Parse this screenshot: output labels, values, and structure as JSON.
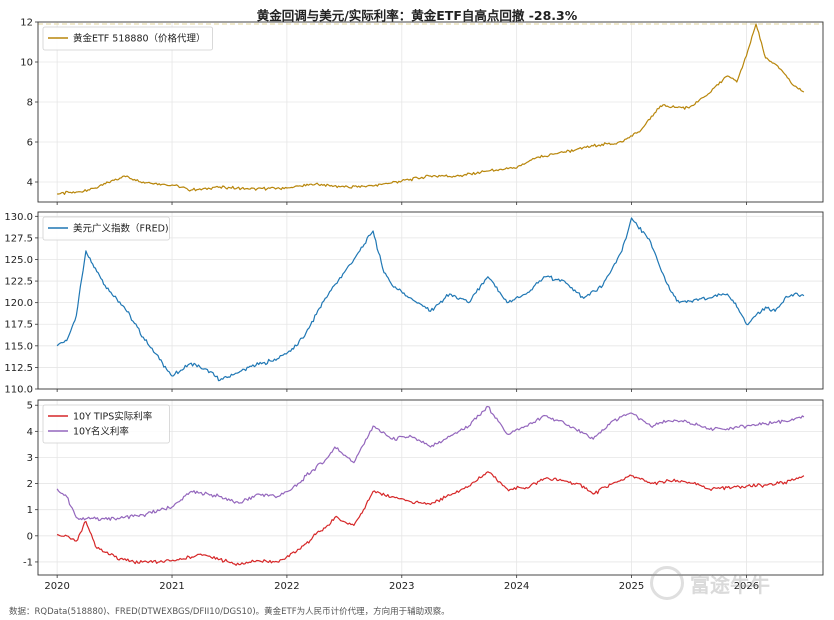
{
  "title": "黄金回调与美元/实际利率：黄金ETF自高点回撤 -28.3%",
  "footnote": "数据：RQData(518880)、FRED(DTWEXBGS/DFII10/DGS10)。黄金ETF为人民币计价代理，方向用于辅助观察。",
  "watermark": "富途牛牛",
  "colors": {
    "gold": "#b8860b",
    "usd": "#1f77b4",
    "tips": "#d62728",
    "nominal": "#9467bd",
    "peak_line": "#e8dcae"
  },
  "chart_data": [
    {
      "type": "line",
      "x_axis": "date",
      "xlim": [
        "2019-11",
        "2026-09"
      ],
      "ylim": [
        3,
        12
      ],
      "yticks": [
        4,
        6,
        8,
        10,
        12
      ],
      "grid": true,
      "legend_position": "top-left",
      "reference_line": {
        "y": 11.9
      },
      "series": [
        {
          "name": "黄金ETF 518880（价格代理）",
          "color": "#b8860b",
          "points": [
            [
              "2020-01",
              3.4
            ],
            [
              "2020-03",
              3.5
            ],
            [
              "2020-05",
              3.7
            ],
            [
              "2020-08",
              4.3
            ],
            [
              "2020-10",
              4.0
            ],
            [
              "2021-01",
              3.85
            ],
            [
              "2021-03",
              3.6
            ],
            [
              "2021-06",
              3.75
            ],
            [
              "2021-09",
              3.65
            ],
            [
              "2022-01",
              3.7
            ],
            [
              "2022-04",
              3.9
            ],
            [
              "2022-07",
              3.75
            ],
            [
              "2022-10",
              3.8
            ],
            [
              "2023-01",
              4.05
            ],
            [
              "2023-04",
              4.3
            ],
            [
              "2023-07",
              4.3
            ],
            [
              "2023-10",
              4.55
            ],
            [
              "2024-01",
              4.7
            ],
            [
              "2024-03",
              5.2
            ],
            [
              "2024-06",
              5.5
            ],
            [
              "2024-09",
              5.8
            ],
            [
              "2024-12",
              6.0
            ],
            [
              "2025-02",
              6.6
            ],
            [
              "2025-04",
              7.8
            ],
            [
              "2025-07",
              7.7
            ],
            [
              "2025-09",
              8.4
            ],
            [
              "2025-11",
              9.3
            ],
            [
              "2025-12",
              9.0
            ],
            [
              "2026-01",
              10.3
            ],
            [
              "2026-02",
              11.9
            ],
            [
              "2026-03",
              10.2
            ],
            [
              "2026-04",
              9.9
            ],
            [
              "2026-05",
              9.4
            ],
            [
              "2026-06",
              8.8
            ],
            [
              "2026-07",
              8.5
            ]
          ]
        }
      ]
    },
    {
      "type": "line",
      "x_axis": "date",
      "xlim": [
        "2019-11",
        "2026-09"
      ],
      "ylim": [
        110,
        130.5
      ],
      "yticks": [
        110.0,
        112.5,
        115.0,
        117.5,
        120.0,
        122.5,
        125.0,
        127.5,
        130.0
      ],
      "grid": true,
      "legend_position": "top-left",
      "series": [
        {
          "name": "美元广义指数（FRED)",
          "color": "#1f77b4",
          "points": [
            [
              "2020-01",
              115.0
            ],
            [
              "2020-02",
              115.6
            ],
            [
              "2020-03",
              118.5
            ],
            [
              "2020-04",
              126.0
            ],
            [
              "2020-05",
              124.0
            ],
            [
              "2020-06",
              122.0
            ],
            [
              "2020-08",
              119.5
            ],
            [
              "2020-10",
              116.0
            ],
            [
              "2020-12",
              113.0
            ],
            [
              "2021-01",
              111.5
            ],
            [
              "2021-03",
              113.0
            ],
            [
              "2021-05",
              112.0
            ],
            [
              "2021-06",
              111.0
            ],
            [
              "2021-09",
              112.5
            ],
            [
              "2021-12",
              113.5
            ],
            [
              "2022-02",
              115.0
            ],
            [
              "2022-03",
              116.5
            ],
            [
              "2022-05",
              120.5
            ],
            [
              "2022-07",
              123.5
            ],
            [
              "2022-08",
              125.0
            ],
            [
              "2022-10",
              128.3
            ],
            [
              "2022-11",
              124.0
            ],
            [
              "2022-12",
              122.0
            ],
            [
              "2023-02",
              120.5
            ],
            [
              "2023-04",
              119.0
            ],
            [
              "2023-06",
              121.0
            ],
            [
              "2023-08",
              120.0
            ],
            [
              "2023-10",
              123.0
            ],
            [
              "2023-12",
              120.0
            ],
            [
              "2024-02",
              121.0
            ],
            [
              "2024-04",
              123.0
            ],
            [
              "2024-06",
              122.5
            ],
            [
              "2024-08",
              120.5
            ],
            [
              "2024-10",
              122.0
            ],
            [
              "2024-12",
              126.0
            ],
            [
              "2025-01",
              129.8
            ],
            [
              "2025-03",
              127.0
            ],
            [
              "2025-04",
              124.0
            ],
            [
              "2025-05",
              121.5
            ],
            [
              "2025-06",
              120.0
            ],
            [
              "2025-09",
              120.5
            ],
            [
              "2025-11",
              121.0
            ],
            [
              "2025-12",
              119.5
            ],
            [
              "2026-01",
              117.5
            ],
            [
              "2026-03",
              119.5
            ],
            [
              "2026-04",
              119.0
            ],
            [
              "2026-05",
              120.5
            ],
            [
              "2026-06",
              121.0
            ],
            [
              "2026-07",
              120.8
            ]
          ]
        }
      ]
    },
    {
      "type": "line",
      "x_axis": "date",
      "xlim": [
        "2019-11",
        "2026-09"
      ],
      "ylim": [
        -1.5,
        5.2
      ],
      "yticks": [
        -1,
        0,
        1,
        2,
        3,
        4,
        5
      ],
      "xticks": [
        "2020",
        "2021",
        "2022",
        "2023",
        "2024",
        "2025",
        "2026"
      ],
      "grid": true,
      "legend_position": "top-left",
      "series": [
        {
          "name": "10Y TIPS实际利率",
          "color": "#d62728",
          "points": [
            [
              "2020-01",
              0.05
            ],
            [
              "2020-02",
              0.0
            ],
            [
              "2020-03",
              -0.2
            ],
            [
              "2020-04",
              0.55
            ],
            [
              "2020-05",
              -0.4
            ],
            [
              "2020-07",
              -0.8
            ],
            [
              "2020-09",
              -1.0
            ],
            [
              "2020-12",
              -1.0
            ],
            [
              "2021-02",
              -0.9
            ],
            [
              "2021-04",
              -0.7
            ],
            [
              "2021-06",
              -0.9
            ],
            [
              "2021-08",
              -1.1
            ],
            [
              "2021-10",
              -0.95
            ],
            [
              "2021-12",
              -1.0
            ],
            [
              "2022-02",
              -0.6
            ],
            [
              "2022-03",
              -0.3
            ],
            [
              "2022-04",
              0.05
            ],
            [
              "2022-05",
              0.3
            ],
            [
              "2022-06",
              0.7
            ],
            [
              "2022-08",
              0.4
            ],
            [
              "2022-09",
              1.0
            ],
            [
              "2022-10",
              1.7
            ],
            [
              "2022-12",
              1.5
            ],
            [
              "2023-02",
              1.3
            ],
            [
              "2023-04",
              1.2
            ],
            [
              "2023-06",
              1.55
            ],
            [
              "2023-08",
              1.9
            ],
            [
              "2023-10",
              2.45
            ],
            [
              "2023-12",
              1.8
            ],
            [
              "2024-02",
              1.85
            ],
            [
              "2024-04",
              2.2
            ],
            [
              "2024-06",
              2.1
            ],
            [
              "2024-08",
              1.9
            ],
            [
              "2024-09",
              1.6
            ],
            [
              "2024-11",
              2.0
            ],
            [
              "2025-01",
              2.3
            ],
            [
              "2025-03",
              2.0
            ],
            [
              "2025-05",
              2.1
            ],
            [
              "2025-07",
              2.05
            ],
            [
              "2025-09",
              1.8
            ],
            [
              "2025-11",
              1.85
            ],
            [
              "2026-01",
              1.9
            ],
            [
              "2026-03",
              1.95
            ],
            [
              "2026-05",
              2.05
            ],
            [
              "2026-07",
              2.3
            ]
          ]
        },
        {
          "name": "10Y名义利率",
          "color": "#9467bd",
          "points": [
            [
              "2020-01",
              1.8
            ],
            [
              "2020-02",
              1.5
            ],
            [
              "2020-03",
              0.7
            ],
            [
              "2020-04",
              0.65
            ],
            [
              "2020-07",
              0.65
            ],
            [
              "2020-10",
              0.8
            ],
            [
              "2021-01",
              1.1
            ],
            [
              "2021-03",
              1.7
            ],
            [
              "2021-06",
              1.5
            ],
            [
              "2021-08",
              1.25
            ],
            [
              "2021-10",
              1.6
            ],
            [
              "2021-12",
              1.5
            ],
            [
              "2022-02",
              1.9
            ],
            [
              "2022-03",
              2.3
            ],
            [
              "2022-05",
              2.9
            ],
            [
              "2022-06",
              3.4
            ],
            [
              "2022-08",
              2.8
            ],
            [
              "2022-10",
              4.2
            ],
            [
              "2022-12",
              3.7
            ],
            [
              "2023-02",
              3.8
            ],
            [
              "2023-04",
              3.4
            ],
            [
              "2023-06",
              3.8
            ],
            [
              "2023-08",
              4.2
            ],
            [
              "2023-10",
              4.95
            ],
            [
              "2023-12",
              3.9
            ],
            [
              "2024-02",
              4.2
            ],
            [
              "2024-04",
              4.6
            ],
            [
              "2024-06",
              4.3
            ],
            [
              "2024-09",
              3.7
            ],
            [
              "2024-11",
              4.4
            ],
            [
              "2025-01",
              4.7
            ],
            [
              "2025-03",
              4.2
            ],
            [
              "2025-05",
              4.4
            ],
            [
              "2025-07",
              4.35
            ],
            [
              "2025-09",
              4.1
            ],
            [
              "2025-11",
              4.1
            ],
            [
              "2026-01",
              4.2
            ],
            [
              "2026-03",
              4.3
            ],
            [
              "2026-05",
              4.4
            ],
            [
              "2026-07",
              4.55
            ]
          ]
        }
      ]
    }
  ]
}
